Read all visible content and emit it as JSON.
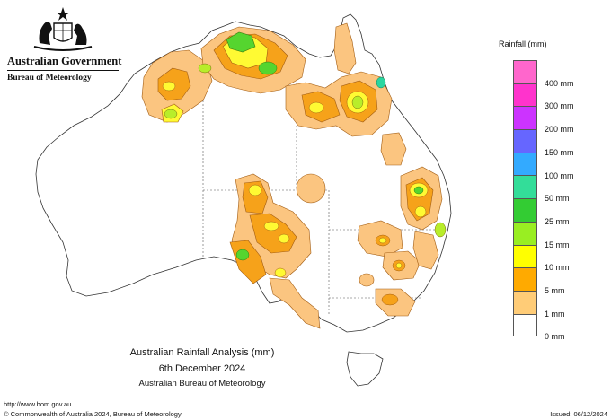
{
  "header": {
    "government": "Australian Government",
    "bureau": "Bureau of Meteorology"
  },
  "legend": {
    "title": "Rainfall (mm)",
    "levels": [
      {
        "label": "",
        "color": "#ff66cc"
      },
      {
        "label": "400 mm",
        "color": "#ff33cc"
      },
      {
        "label": "300 mm",
        "color": "#cc33ff"
      },
      {
        "label": "200 mm",
        "color": "#6666ff"
      },
      {
        "label": "150 mm",
        "color": "#33aaff"
      },
      {
        "label": "100 mm",
        "color": "#33dd99"
      },
      {
        "label": "50 mm",
        "color": "#33cc33"
      },
      {
        "label": "25 mm",
        "color": "#99ee22"
      },
      {
        "label": "15 mm",
        "color": "#ffff00"
      },
      {
        "label": "10 mm",
        "color": "#ffaa00"
      },
      {
        "label": "5 mm",
        "color": "#ffcc77"
      },
      {
        "label": "1 mm",
        "color": "#ffffff"
      }
    ],
    "bottom_label": "0 mm"
  },
  "caption": {
    "title": "Australian Rainfall Analysis (mm)",
    "date": "6th December 2024",
    "source": "Australian Bureau of Meteorology"
  },
  "footer": {
    "url": "http://www.bom.gov.au",
    "copyright": "© Commonwealth of Australia 2024, Bureau of Meteorology",
    "issued": "Issued: 06/12/2024"
  },
  "map": {
    "region": "Australia",
    "rain_colors": {
      "one_mm": "#fbc580",
      "five_mm": "#f6a21a",
      "ten_mm": "#fffa33",
      "fifteen_mm": "#b8ed2a",
      "twentyfive_mm": "#55d52f",
      "fifty_mm": "#2bd6a0"
    }
  }
}
